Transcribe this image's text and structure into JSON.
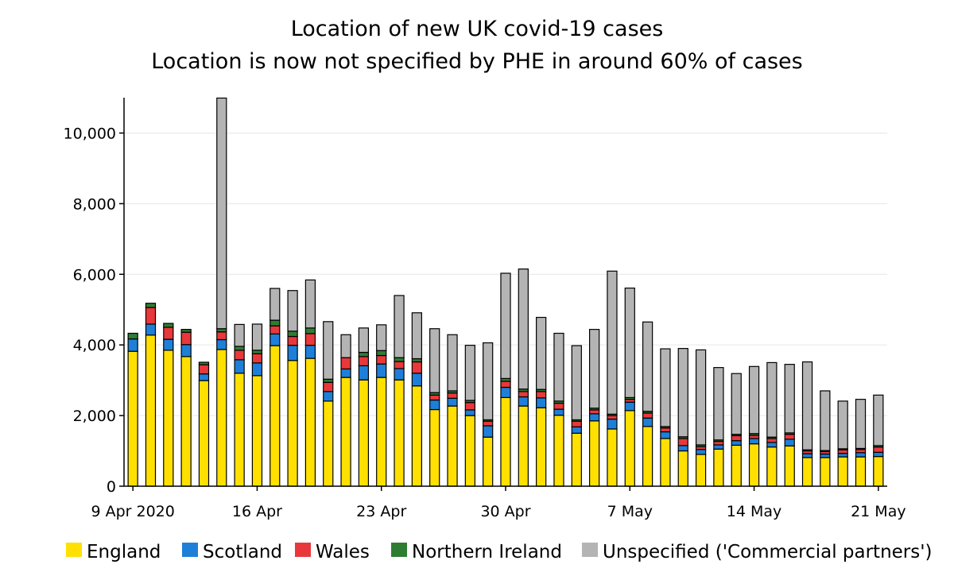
{
  "chart_data": {
    "type": "bar",
    "stacked": true,
    "title": "Location of new UK covid-19 cases",
    "subtitle": "Location is now not specified by PHE in around 60% of cases",
    "xlabel": "",
    "ylabel": "",
    "ylim": [
      0,
      11000
    ],
    "grid": true,
    "legend_position": "bottom",
    "y_ticks": [
      0,
      2000,
      4000,
      6000,
      8000,
      10000
    ],
    "y_tick_labels": [
      "0",
      "2,000",
      "4,000",
      "6,000",
      "8,000",
      "10,000"
    ],
    "x_tick_labels": [
      {
        "index": 0,
        "label": "9 Apr 2020"
      },
      {
        "index": 7,
        "label": "16 Apr"
      },
      {
        "index": 14,
        "label": "23 Apr"
      },
      {
        "index": 21,
        "label": "30 Apr"
      },
      {
        "index": 28,
        "label": "7 May"
      },
      {
        "index": 35,
        "label": "14 May"
      },
      {
        "index": 42,
        "label": "21 May"
      }
    ],
    "categories": [
      "2020-04-09",
      "2020-04-10",
      "2020-04-11",
      "2020-04-12",
      "2020-04-13",
      "2020-04-14",
      "2020-04-15",
      "2020-04-16",
      "2020-04-17",
      "2020-04-18",
      "2020-04-19",
      "2020-04-20",
      "2020-04-21",
      "2020-04-22",
      "2020-04-23",
      "2020-04-24",
      "2020-04-25",
      "2020-04-26",
      "2020-04-27",
      "2020-04-28",
      "2020-04-29",
      "2020-04-30",
      "2020-05-01",
      "2020-05-02",
      "2020-05-03",
      "2020-05-04",
      "2020-05-05",
      "2020-05-06",
      "2020-05-07",
      "2020-05-08",
      "2020-05-09",
      "2020-05-10",
      "2020-05-11",
      "2020-05-12",
      "2020-05-13",
      "2020-05-14",
      "2020-05-15",
      "2020-05-16",
      "2020-05-17",
      "2020-05-18",
      "2020-05-19",
      "2020-05-20",
      "2020-05-21"
    ],
    "series": [
      {
        "name": "England",
        "color": "#FFE000",
        "values": [
          3820,
          4280,
          3850,
          3670,
          2990,
          3870,
          3200,
          3130,
          3980,
          3560,
          3620,
          2410,
          3080,
          3010,
          3080,
          3010,
          2840,
          2170,
          2270,
          2000,
          1390,
          2510,
          2270,
          2220,
          2010,
          1500,
          1850,
          1620,
          2140,
          1690,
          1350,
          1000,
          900,
          1050,
          1160,
          1200,
          1110,
          1140,
          810,
          810,
          830,
          830,
          840
        ]
      },
      {
        "name": "Scotland",
        "color": "#1E7FD9",
        "values": [
          350,
          310,
          310,
          340,
          190,
          280,
          380,
          360,
          330,
          430,
          370,
          270,
          240,
          400,
          380,
          320,
          360,
          270,
          220,
          160,
          320,
          290,
          260,
          280,
          170,
          180,
          200,
          280,
          240,
          240,
          190,
          150,
          140,
          120,
          130,
          150,
          130,
          190,
          110,
          100,
          100,
          120,
          120
        ]
      },
      {
        "name": "Wales",
        "color": "#E8383B",
        "values": [
          0,
          470,
          340,
          350,
          260,
          220,
          270,
          260,
          230,
          250,
          330,
          260,
          320,
          260,
          240,
          200,
          320,
          140,
          150,
          210,
          130,
          170,
          150,
          180,
          170,
          160,
          110,
          100,
          80,
          140,
          110,
          200,
          80,
          100,
          140,
          90,
          110,
          140,
          80,
          70,
          100,
          90,
          150
        ]
      },
      {
        "name": "Northern Ireland",
        "color": "#2E7D32",
        "values": [
          160,
          120,
          110,
          80,
          70,
          90,
          110,
          100,
          160,
          150,
          160,
          90,
          0,
          120,
          140,
          110,
          90,
          70,
          60,
          60,
          40,
          80,
          70,
          60,
          60,
          40,
          50,
          40,
          50,
          50,
          40,
          50,
          50,
          40,
          40,
          50,
          40,
          40,
          30,
          30,
          30,
          30,
          40
        ]
      },
      {
        "name": "Unspecified ('Commercial partners')",
        "color": "#B4B4B4",
        "values": [
          0,
          0,
          0,
          0,
          0,
          6530,
          620,
          740,
          900,
          1150,
          1360,
          1630,
          650,
          690,
          730,
          1760,
          1300,
          1810,
          1590,
          1560,
          2180,
          2980,
          3400,
          2040,
          1920,
          2100,
          2230,
          4050,
          3100,
          2530,
          2200,
          2500,
          2690,
          2050,
          1720,
          1900,
          2110,
          1940,
          2490,
          1690,
          1350,
          1390,
          1430
        ]
      }
    ]
  }
}
